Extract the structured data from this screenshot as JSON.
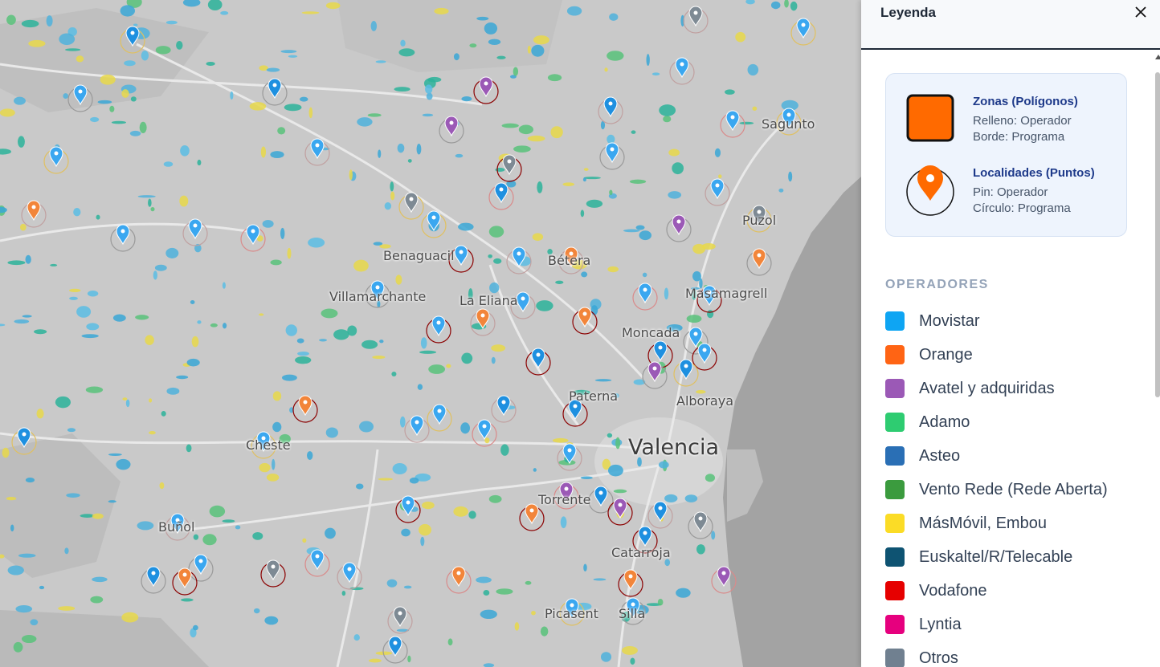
{
  "map": {
    "cities": [
      {
        "name": "Valencia",
        "big": true
      },
      {
        "name": "Sagunto"
      },
      {
        "name": "Puzol"
      },
      {
        "name": "Masamagrell"
      },
      {
        "name": "Moncada"
      },
      {
        "name": "Alboraya"
      },
      {
        "name": "Paterna"
      },
      {
        "name": "Bétera"
      },
      {
        "name": "Benaguacil"
      },
      {
        "name": "Villamarchante"
      },
      {
        "name": "La Eliana"
      },
      {
        "name": "Cheste"
      },
      {
        "name": "Buñol"
      },
      {
        "name": "Torrente"
      },
      {
        "name": "Catarroja"
      },
      {
        "name": "Picasent"
      },
      {
        "name": "Silla"
      }
    ]
  },
  "legend": {
    "title": "Leyenda",
    "close_icon": "close-icon",
    "zones_title": "Zonas (Polígonos)",
    "zones_line1": "Relleno: Operador",
    "zones_line2": "Borde: Programa",
    "points_title": "Localidades (Puntos)",
    "points_line1": "Pin: Operador",
    "points_line2": "Círculo: Programa",
    "zones_color": "#ff6a00",
    "operators_heading": "OPERADORES",
    "operators": [
      {
        "label": "Movistar",
        "color": "#0ea5f3"
      },
      {
        "label": "Orange",
        "color": "#ff6414"
      },
      {
        "label": "Avatel y adquiridas",
        "color": "#9b59b6"
      },
      {
        "label": "Adamo",
        "color": "#2ecc71"
      },
      {
        "label": "Asteo",
        "color": "#2a6fb5"
      },
      {
        "label": "Vento Rede (Rede Aberta)",
        "color": "#3b9b3e"
      },
      {
        "label": "MásMóvil, Embou",
        "color": "#fbdc26"
      },
      {
        "label": "Euskaltel/R/Telecable",
        "color": "#0e5372"
      },
      {
        "label": "Vodafone",
        "color": "#e60000"
      },
      {
        "label": "Lyntia",
        "color": "#e6007e"
      },
      {
        "label": "Otros",
        "color": "#708090"
      }
    ]
  }
}
